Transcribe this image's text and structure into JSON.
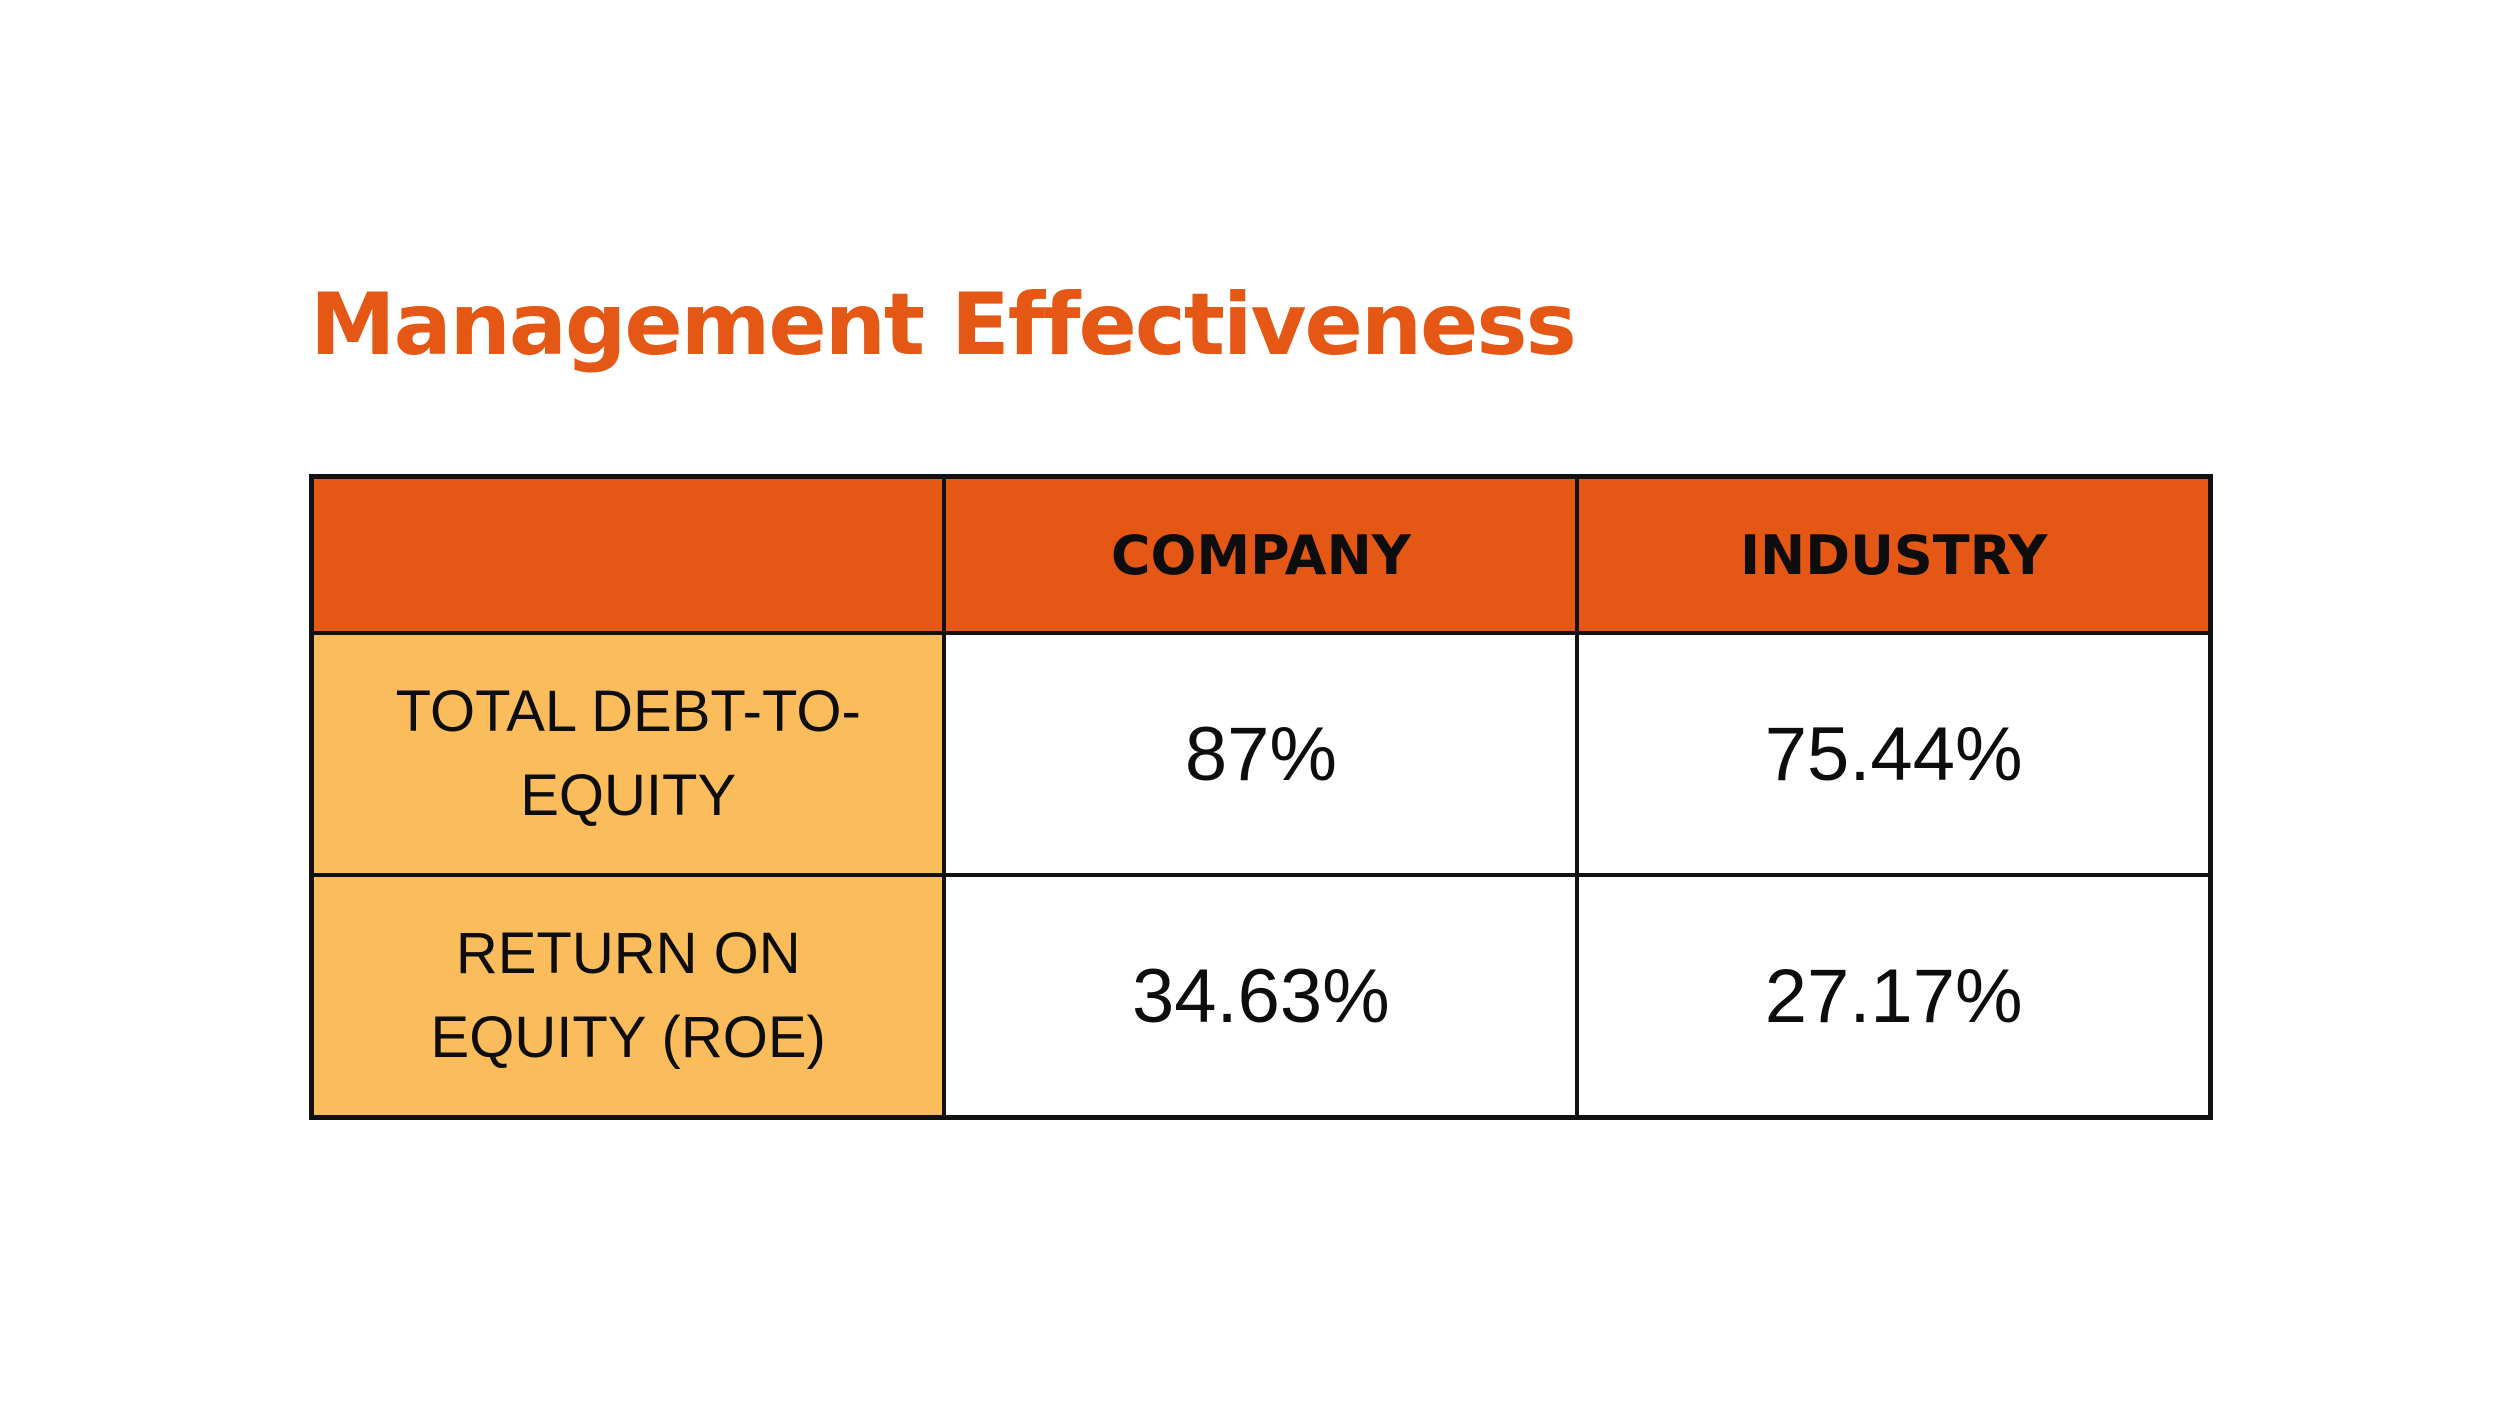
{
  "title": "Management Effectiveness",
  "colors": {
    "title": "#e55715",
    "header_background": "#e55715",
    "row_label_background": "#fbbd5b",
    "border": "#111111",
    "text": "#0d0d0d"
  },
  "chart_data": {
    "type": "table",
    "title": "Management Effectiveness",
    "columns": [
      "",
      "COMPANY",
      "INDUSTRY"
    ],
    "rows": [
      {
        "label": "TOTAL DEBT-TO-EQUITY",
        "company": "87%",
        "industry": "75.44%"
      },
      {
        "label": "RETURN ON EQUITY (ROE)",
        "company": "34.63%",
        "industry": "27.17%"
      }
    ]
  }
}
